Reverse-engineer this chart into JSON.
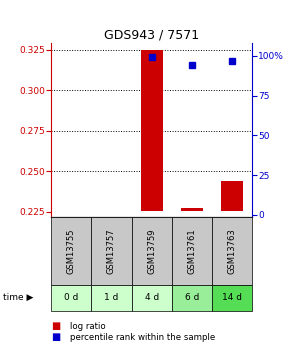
{
  "title": "GDS943 / 7571",
  "samples": [
    "GSM13755",
    "GSM13757",
    "GSM13759",
    "GSM13761",
    "GSM13763"
  ],
  "time_labels": [
    "0 d",
    "1 d",
    "4 d",
    "6 d",
    "14 d"
  ],
  "log_ratio": [
    0.2255,
    0.2255,
    0.325,
    0.2275,
    0.244
  ],
  "log_ratio_base": 0.2255,
  "percentile_rank": [
    null,
    null,
    99.5,
    94.0,
    97.0
  ],
  "ylim_left": [
    0.2215,
    0.329
  ],
  "ylim_right": [
    -1.5,
    108
  ],
  "yticks_left": [
    0.225,
    0.25,
    0.275,
    0.3,
    0.325
  ],
  "yticks_right": [
    0,
    25,
    50,
    75,
    100
  ],
  "left_axis_color": "#cc0000",
  "right_axis_color": "#0000cc",
  "bar_color": "#cc0000",
  "dot_color": "#0000cc",
  "sample_bg_color": "#c8c8c8",
  "time_bg_colors": [
    "#ccffcc",
    "#ccffcc",
    "#ccffcc",
    "#99ee99",
    "#55dd55"
  ],
  "legend_items": [
    "log ratio",
    "percentile rank within the sample"
  ],
  "legend_colors": [
    "#cc0000",
    "#0000cc"
  ]
}
